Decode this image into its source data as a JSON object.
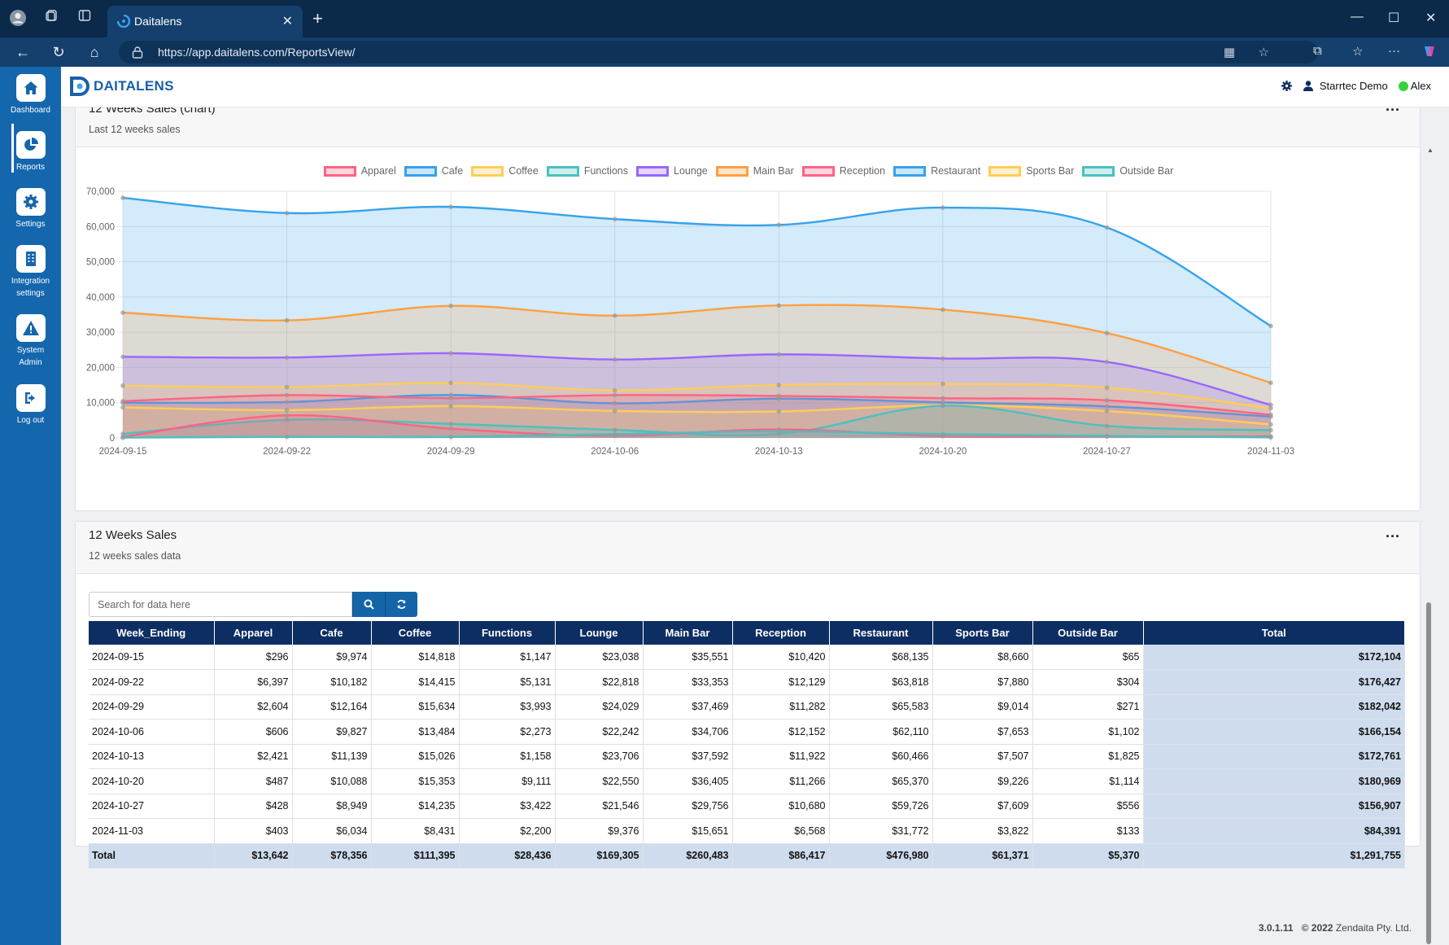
{
  "browser": {
    "tab_title": "Daitalens",
    "url": "https://app.daitalens.com/ReportsView/"
  },
  "sidebar": {
    "items": [
      {
        "label": "Dashboard",
        "icon": "home-icon"
      },
      {
        "label": "Reports",
        "icon": "pie-chart-icon"
      },
      {
        "label": "Settings",
        "icon": "gear-icon"
      },
      {
        "label": "Integration settings",
        "icon": "building-icon"
      },
      {
        "label": "System Admin",
        "icon": "warning-icon"
      },
      {
        "label": "Log out",
        "icon": "logout-icon"
      }
    ],
    "active": "Reports"
  },
  "topnav": {
    "logo_text": "DAITALENS",
    "org": "Starrtec Demo",
    "user": "Alex"
  },
  "chart_card": {
    "title": "12 Weeks Sales (chart)",
    "subtitle": "Last 12 weeks sales",
    "menu": "···"
  },
  "chart_data": {
    "type": "area",
    "x": [
      "2024-09-15",
      "2024-09-22",
      "2024-09-29",
      "2024-10-06",
      "2024-10-13",
      "2024-10-20",
      "2024-10-27",
      "2024-11-03"
    ],
    "ylim": [
      0,
      70000
    ],
    "yticks": [
      "0",
      "10,000",
      "20,000",
      "30,000",
      "40,000",
      "50,000",
      "60,000",
      "70,000"
    ],
    "grid": true,
    "legend": "top-center",
    "series": [
      {
        "name": "Apparel",
        "color": "#ff6384",
        "values": [
          296,
          6397,
          2604,
          606,
          2421,
          487,
          428,
          403
        ]
      },
      {
        "name": "Cafe",
        "color": "#36a2eb",
        "values": [
          9974,
          10182,
          12164,
          9827,
          11139,
          10088,
          8949,
          6034
        ]
      },
      {
        "name": "Coffee",
        "color": "#ffcd56",
        "values": [
          14818,
          14415,
          15634,
          13484,
          15026,
          15353,
          14235,
          8431
        ]
      },
      {
        "name": "Functions",
        "color": "#4bc0c0",
        "values": [
          1147,
          5131,
          3993,
          2273,
          1158,
          9111,
          3422,
          2200
        ]
      },
      {
        "name": "Lounge",
        "color": "#9966ff",
        "values": [
          23038,
          22818,
          24029,
          22242,
          23706,
          22550,
          21546,
          9376
        ]
      },
      {
        "name": "Main Bar",
        "color": "#ff9f40",
        "values": [
          35551,
          33353,
          37469,
          34706,
          37592,
          36405,
          29756,
          15651
        ]
      },
      {
        "name": "Reception",
        "color": "#ff6384",
        "values": [
          10420,
          12129,
          11282,
          12152,
          11922,
          11266,
          10680,
          6568
        ]
      },
      {
        "name": "Restaurant",
        "color": "#36a2eb",
        "values": [
          68135,
          63818,
          65583,
          62110,
          60466,
          65370,
          59726,
          31772
        ]
      },
      {
        "name": "Sports Bar",
        "color": "#ffcd56",
        "values": [
          8660,
          7880,
          9014,
          7653,
          7507,
          9226,
          7609,
          3822
        ]
      },
      {
        "name": "Outside Bar",
        "color": "#4bc0c0",
        "values": [
          65,
          304,
          271,
          1102,
          1825,
          1114,
          556,
          133
        ]
      }
    ]
  },
  "table_card": {
    "title": "12 Weeks Sales",
    "subtitle": "12 weeks sales data",
    "menu": "···",
    "search_placeholder": "Search for data here",
    "columns": [
      "Week_Ending",
      "Apparel",
      "Cafe",
      "Coffee",
      "Functions",
      "Lounge",
      "Main Bar",
      "Reception",
      "Restaurant",
      "Sports Bar",
      "Outside Bar",
      "Total"
    ],
    "rows": [
      [
        "2024-09-15",
        "$296",
        "$9,974",
        "$14,818",
        "$1,147",
        "$23,038",
        "$35,551",
        "$10,420",
        "$68,135",
        "$8,660",
        "$65",
        "$172,104"
      ],
      [
        "2024-09-22",
        "$6,397",
        "$10,182",
        "$14,415",
        "$5,131",
        "$22,818",
        "$33,353",
        "$12,129",
        "$63,818",
        "$7,880",
        "$304",
        "$176,427"
      ],
      [
        "2024-09-29",
        "$2,604",
        "$12,164",
        "$15,634",
        "$3,993",
        "$24,029",
        "$37,469",
        "$11,282",
        "$65,583",
        "$9,014",
        "$271",
        "$182,042"
      ],
      [
        "2024-10-06",
        "$606",
        "$9,827",
        "$13,484",
        "$2,273",
        "$22,242",
        "$34,706",
        "$12,152",
        "$62,110",
        "$7,653",
        "$1,102",
        "$166,154"
      ],
      [
        "2024-10-13",
        "$2,421",
        "$11,139",
        "$15,026",
        "$1,158",
        "$23,706",
        "$37,592",
        "$11,922",
        "$60,466",
        "$7,507",
        "$1,825",
        "$172,761"
      ],
      [
        "2024-10-20",
        "$487",
        "$10,088",
        "$15,353",
        "$9,111",
        "$22,550",
        "$36,405",
        "$11,266",
        "$65,370",
        "$9,226",
        "$1,114",
        "$180,969"
      ],
      [
        "2024-10-27",
        "$428",
        "$8,949",
        "$14,235",
        "$3,422",
        "$21,546",
        "$29,756",
        "$10,680",
        "$59,726",
        "$7,609",
        "$556",
        "$156,907"
      ],
      [
        "2024-11-03",
        "$403",
        "$6,034",
        "$8,431",
        "$2,200",
        "$9,376",
        "$15,651",
        "$6,568",
        "$31,772",
        "$3,822",
        "$133",
        "$84,391"
      ]
    ],
    "total_row": [
      "Total",
      "$13,642",
      "$78,356",
      "$111,395",
      "$28,436",
      "$169,305",
      "$260,483",
      "$86,417",
      "$476,980",
      "$61,371",
      "$5,370",
      "$1,291,755"
    ]
  },
  "footer": {
    "version": "3.0.1.11",
    "copyright": "© 2022 Zendaita Pty. Ltd."
  }
}
